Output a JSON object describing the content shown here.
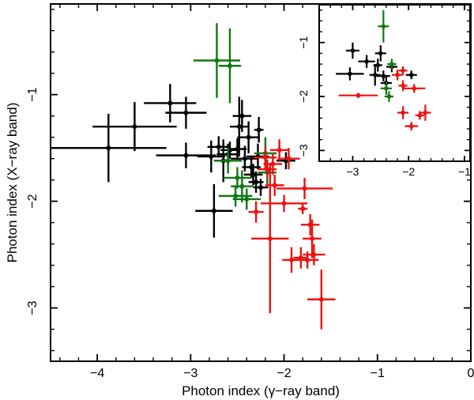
{
  "chart_data": [
    {
      "type": "scatter",
      "title": "",
      "xlabel": "Photon index (γ−ray band)",
      "ylabel": "Photon index (X−ray band)",
      "xlim": [
        -4.5,
        0
      ],
      "ylim": [
        -3.5,
        -0.15
      ],
      "x_ticks": [
        "−4",
        "−3",
        "−2",
        "−1",
        "0"
      ],
      "y_ticks": [
        "−1",
        "−2",
        "−3"
      ],
      "grid": false,
      "legend": "none",
      "series": [
        {
          "color": "#000000",
          "points": [
            {
              "x": -3.88,
              "y": -1.5,
              "xerr": 0.62,
              "yerr": 0.32
            },
            {
              "x": -3.6,
              "y": -1.3,
              "xerr": 0.45,
              "yerr": 0.23
            },
            {
              "x": -3.22,
              "y": -1.08,
              "xerr": 0.28,
              "yerr": 0.18
            },
            {
              "x": -3.05,
              "y": -1.17,
              "xerr": 0.22,
              "yerr": 0.15
            },
            {
              "x": -3.05,
              "y": -1.57,
              "xerr": 0.32,
              "yerr": 0.12
            },
            {
              "x": -2.78,
              "y": -1.58,
              "xerr": 0.15,
              "yerr": 0.15
            },
            {
              "x": -2.75,
              "y": -2.09,
              "xerr": 0.2,
              "yerr": 0.25
            },
            {
              "x": -2.7,
              "y": -1.49,
              "xerr": 0.12,
              "yerr": 0.1
            },
            {
              "x": -2.65,
              "y": -1.62,
              "xerr": 0.1,
              "yerr": 0.2
            },
            {
              "x": -2.6,
              "y": -1.56,
              "xerr": 0.12,
              "yerr": 0.1
            },
            {
              "x": -2.58,
              "y": -1.52,
              "xerr": 0.1,
              "yerr": 0.08
            },
            {
              "x": -2.5,
              "y": -1.51,
              "xerr": 0.1,
              "yerr": 0.1
            },
            {
              "x": -2.48,
              "y": -1.3,
              "xerr": 0.1,
              "yerr": 0.28
            },
            {
              "x": -2.45,
              "y": -1.2,
              "xerr": 0.1,
              "yerr": 0.15
            },
            {
              "x": -2.42,
              "y": -1.6,
              "xerr": 0.15,
              "yerr": 0.12
            },
            {
              "x": -2.38,
              "y": -1.4,
              "xerr": 0.12,
              "yerr": 0.15
            },
            {
              "x": -2.35,
              "y": -1.68,
              "xerr": 0.1,
              "yerr": 0.1
            },
            {
              "x": -2.33,
              "y": -1.75,
              "xerr": 0.1,
              "yerr": 0.1
            },
            {
              "x": -2.3,
              "y": -1.82,
              "xerr": 0.08,
              "yerr": 0.1
            },
            {
              "x": -2.28,
              "y": -1.58,
              "xerr": 0.12,
              "yerr": 0.12
            },
            {
              "x": -2.27,
              "y": -1.33,
              "xerr": 0.05,
              "yerr": 0.12
            },
            {
              "x": -2.25,
              "y": -1.87,
              "xerr": 0.08,
              "yerr": 0.08
            },
            {
              "x": -1.98,
              "y": -1.62,
              "xerr": 0.1,
              "yerr": 0.08
            }
          ]
        },
        {
          "color": "#117711",
          "points": [
            {
              "x": -2.72,
              "y": -0.68,
              "xerr": 0.25,
              "yerr": 0.35
            },
            {
              "x": -2.58,
              "y": -0.73,
              "xerr": 0.12,
              "yerr": 0.35
            },
            {
              "x": -2.6,
              "y": -1.62,
              "xerr": 0.15,
              "yerr": 0.12
            },
            {
              "x": -2.5,
              "y": -1.78,
              "xerr": 0.15,
              "yerr": 0.1
            },
            {
              "x": -2.52,
              "y": -1.95,
              "xerr": 0.18,
              "yerr": 0.1
            },
            {
              "x": -2.45,
              "y": -1.86,
              "xerr": 0.12,
              "yerr": 0.15
            },
            {
              "x": -2.4,
              "y": -1.98,
              "xerr": 0.15,
              "yerr": 0.1
            },
            {
              "x": -2.2,
              "y": -1.55,
              "xerr": 0.12,
              "yerr": 0.15
            },
            {
              "x": -2.18,
              "y": -1.73,
              "xerr": 0.1,
              "yerr": 0.12
            }
          ]
        },
        {
          "color": "#ee1111",
          "points": [
            {
              "x": -2.3,
              "y": -2.1,
              "xerr": 0.08,
              "yerr": 0.1
            },
            {
              "x": -2.2,
              "y": -1.59,
              "xerr": 0.12,
              "yerr": 0.1
            },
            {
              "x": -2.18,
              "y": -1.7,
              "xerr": 0.1,
              "yerr": 0.08
            },
            {
              "x": -2.12,
              "y": -1.65,
              "xerr": 0.1,
              "yerr": 0.1
            },
            {
              "x": -2.1,
              "y": -1.85,
              "xerr": 0.1,
              "yerr": 0.1
            },
            {
              "x": -2.05,
              "y": -1.52,
              "xerr": 0.1,
              "yerr": 0.1
            },
            {
              "x": -1.95,
              "y": -1.6,
              "xerr": 0.12,
              "yerr": 0.1
            },
            {
              "x": -2.15,
              "y": -2.35,
              "xerr": 0.2,
              "yerr": 0.7
            },
            {
              "x": -2.0,
              "y": -2.02,
              "xerr": 0.25,
              "yerr": 0.08
            },
            {
              "x": -1.78,
              "y": -1.88,
              "xerr": 0.3,
              "yerr": 0.1
            },
            {
              "x": -1.92,
              "y": -2.55,
              "xerr": 0.1,
              "yerr": 0.12
            },
            {
              "x": -1.82,
              "y": -2.53,
              "xerr": 0.08,
              "yerr": 0.1
            },
            {
              "x": -1.75,
              "y": -2.55,
              "xerr": 0.12,
              "yerr": 0.08
            },
            {
              "x": -1.68,
              "y": -2.5,
              "xerr": 0.12,
              "yerr": 0.1
            },
            {
              "x": -1.7,
              "y": -2.35,
              "xerr": 0.1,
              "yerr": 0.18
            },
            {
              "x": -1.72,
              "y": -2.22,
              "xerr": 0.1,
              "yerr": 0.1
            },
            {
              "x": -1.8,
              "y": -2.07,
              "xerr": 0.05,
              "yerr": 0.05
            },
            {
              "x": -1.6,
              "y": -2.92,
              "xerr": 0.15,
              "yerr": 0.28
            }
          ]
        }
      ]
    },
    {
      "type": "scatter",
      "title": "",
      "xlabel": "",
      "ylabel": "",
      "xlim": [
        -3.6,
        -0.9
      ],
      "ylim": [
        -3.2,
        -0.3
      ],
      "x_ticks": [
        "−3",
        "−2",
        "−1"
      ],
      "y_ticks": [
        "−1",
        "−2",
        "−3"
      ],
      "grid": false,
      "legend": "none",
      "series": [
        {
          "color": "#000000",
          "points": [
            {
              "x": -3.0,
              "y": -1.15,
              "xerr": 0.12,
              "yerr": 0.15
            },
            {
              "x": -3.05,
              "y": -1.58,
              "xerr": 0.25,
              "yerr": 0.12
            },
            {
              "x": -2.75,
              "y": -1.35,
              "xerr": 0.15,
              "yerr": 0.12
            },
            {
              "x": -2.6,
              "y": -1.6,
              "xerr": 0.1,
              "yerr": 0.2
            },
            {
              "x": -2.55,
              "y": -1.42,
              "xerr": 0.08,
              "yerr": 0.12
            },
            {
              "x": -2.5,
              "y": -1.2,
              "xerr": 0.1,
              "yerr": 0.15
            },
            {
              "x": -2.45,
              "y": -1.62,
              "xerr": 0.12,
              "yerr": 0.1
            },
            {
              "x": -2.4,
              "y": -1.75,
              "xerr": 0.1,
              "yerr": 0.12
            },
            {
              "x": -2.3,
              "y": -1.45,
              "xerr": 0.1,
              "yerr": 0.1
            },
            {
              "x": -1.95,
              "y": -1.6,
              "xerr": 0.1,
              "yerr": 0.08
            }
          ]
        },
        {
          "color": "#117711",
          "points": [
            {
              "x": -2.45,
              "y": -0.7,
              "xerr": 0.1,
              "yerr": 0.3
            },
            {
              "x": -2.4,
              "y": -1.85,
              "xerr": 0.1,
              "yerr": 0.12
            },
            {
              "x": -2.3,
              "y": -1.4,
              "xerr": 0.08,
              "yerr": 0.1
            },
            {
              "x": -2.35,
              "y": -2.0,
              "xerr": 0.08,
              "yerr": 0.1
            }
          ]
        },
        {
          "color": "#ee1111",
          "points": [
            {
              "x": -2.9,
              "y": -1.98,
              "xerr": 0.35,
              "yerr": 0.05
            },
            {
              "x": -2.2,
              "y": -1.6,
              "xerr": 0.1,
              "yerr": 0.1
            },
            {
              "x": -2.1,
              "y": -1.52,
              "xerr": 0.08,
              "yerr": 0.08
            },
            {
              "x": -2.1,
              "y": -1.8,
              "xerr": 0.08,
              "yerr": 0.1
            },
            {
              "x": -1.9,
              "y": -1.85,
              "xerr": 0.2,
              "yerr": 0.08
            },
            {
              "x": -2.1,
              "y": -2.3,
              "xerr": 0.1,
              "yerr": 0.12
            },
            {
              "x": -1.8,
              "y": -2.35,
              "xerr": 0.08,
              "yerr": 0.08
            },
            {
              "x": -1.7,
              "y": -2.3,
              "xerr": 0.1,
              "yerr": 0.15
            },
            {
              "x": -1.95,
              "y": -2.55,
              "xerr": 0.12,
              "yerr": 0.08
            }
          ]
        }
      ]
    }
  ]
}
